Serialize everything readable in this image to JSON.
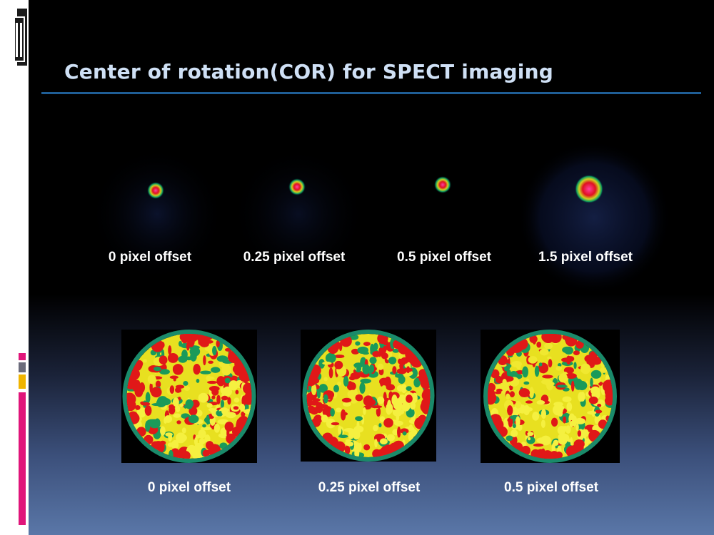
{
  "slide": {
    "title": "Center of rotation(COR) for SPECT imaging"
  },
  "point_source_images": {
    "captions": [
      "0 pixel offset",
      "0.25 pixel offset",
      "0.5 pixel offset",
      "1.5 pixel offset"
    ]
  },
  "phantom_images": {
    "captions": [
      "0 pixel offset",
      "0.25 pixel offset",
      "0.5 pixel offset"
    ]
  },
  "colors": {
    "title_text": "#cfe0f5",
    "title_rule": "#1f5e96",
    "accent_magenta": "#e0157a",
    "accent_gray": "#6b6b7b",
    "accent_gold": "#f0b400"
  }
}
